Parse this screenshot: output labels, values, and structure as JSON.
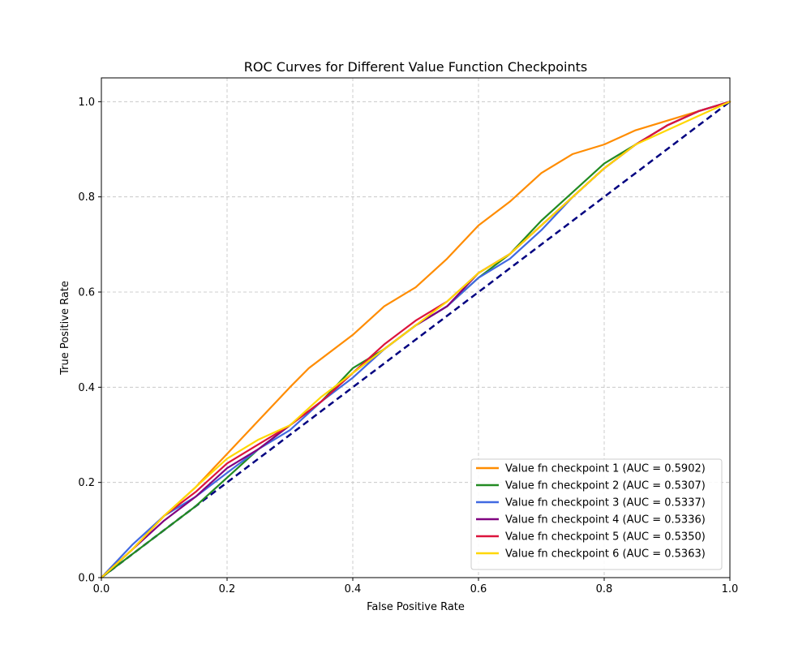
{
  "chart_data": {
    "type": "line",
    "title": "ROC Curves for Different Value Function Checkpoints",
    "xlabel": "False Positive Rate",
    "ylabel": "True Positive Rate",
    "xlim": [
      0.0,
      1.0
    ],
    "ylim": [
      0.0,
      1.05
    ],
    "x_ticks": [
      "0.0",
      "0.2",
      "0.4",
      "0.6",
      "0.8",
      "1.0"
    ],
    "y_ticks": [
      "0.0",
      "0.2",
      "0.4",
      "0.6",
      "0.8",
      "1.0"
    ],
    "grid": true,
    "grid_style": "dashed",
    "legend_position": "lower-right",
    "diagonal_reference": {
      "color": "#000080",
      "style": "dashed",
      "points": [
        [
          0,
          0
        ],
        [
          1,
          1
        ]
      ]
    },
    "series": [
      {
        "name": "Value fn checkpoint 1 (AUC = 0.5902)",
        "color": "#ff8c00",
        "points": [
          [
            0,
            0
          ],
          [
            0.05,
            0.06
          ],
          [
            0.1,
            0.13
          ],
          [
            0.15,
            0.19
          ],
          [
            0.2,
            0.26
          ],
          [
            0.25,
            0.33
          ],
          [
            0.3,
            0.4
          ],
          [
            0.33,
            0.44
          ],
          [
            0.4,
            0.51
          ],
          [
            0.45,
            0.57
          ],
          [
            0.5,
            0.61
          ],
          [
            0.55,
            0.67
          ],
          [
            0.6,
            0.74
          ],
          [
            0.65,
            0.79
          ],
          [
            0.7,
            0.85
          ],
          [
            0.75,
            0.89
          ],
          [
            0.8,
            0.91
          ],
          [
            0.85,
            0.94
          ],
          [
            0.9,
            0.96
          ],
          [
            0.95,
            0.98
          ],
          [
            1,
            1
          ]
        ]
      },
      {
        "name": "Value fn checkpoint 2 (AUC = 0.5307)",
        "color": "#228b22",
        "points": [
          [
            0,
            0
          ],
          [
            0.05,
            0.05
          ],
          [
            0.1,
            0.1
          ],
          [
            0.15,
            0.15
          ],
          [
            0.2,
            0.21
          ],
          [
            0.25,
            0.27
          ],
          [
            0.3,
            0.32
          ],
          [
            0.35,
            0.37
          ],
          [
            0.4,
            0.44
          ],
          [
            0.45,
            0.48
          ],
          [
            0.5,
            0.53
          ],
          [
            0.55,
            0.57
          ],
          [
            0.6,
            0.63
          ],
          [
            0.65,
            0.68
          ],
          [
            0.7,
            0.75
          ],
          [
            0.75,
            0.81
          ],
          [
            0.8,
            0.87
          ],
          [
            0.85,
            0.91
          ],
          [
            0.9,
            0.95
          ],
          [
            0.95,
            0.98
          ],
          [
            1,
            1
          ]
        ]
      },
      {
        "name": "Value fn checkpoint 3 (AUC = 0.5337)",
        "color": "#4169e1",
        "points": [
          [
            0,
            0
          ],
          [
            0.05,
            0.07
          ],
          [
            0.1,
            0.13
          ],
          [
            0.15,
            0.17
          ],
          [
            0.2,
            0.22
          ],
          [
            0.25,
            0.27
          ],
          [
            0.3,
            0.31
          ],
          [
            0.35,
            0.37
          ],
          [
            0.4,
            0.42
          ],
          [
            0.45,
            0.48
          ],
          [
            0.5,
            0.53
          ],
          [
            0.55,
            0.57
          ],
          [
            0.6,
            0.63
          ],
          [
            0.65,
            0.67
          ],
          [
            0.7,
            0.73
          ],
          [
            0.75,
            0.8
          ],
          [
            0.8,
            0.86
          ],
          [
            0.85,
            0.91
          ],
          [
            0.9,
            0.95
          ],
          [
            0.95,
            0.98
          ],
          [
            1,
            1
          ]
        ]
      },
      {
        "name": "Value fn checkpoint 4 (AUC = 0.5336)",
        "color": "#800080",
        "points": [
          [
            0,
            0
          ],
          [
            0.05,
            0.06
          ],
          [
            0.1,
            0.12
          ],
          [
            0.15,
            0.17
          ],
          [
            0.2,
            0.23
          ],
          [
            0.25,
            0.27
          ],
          [
            0.3,
            0.32
          ],
          [
            0.35,
            0.37
          ],
          [
            0.4,
            0.43
          ],
          [
            0.45,
            0.48
          ],
          [
            0.5,
            0.53
          ],
          [
            0.55,
            0.57
          ],
          [
            0.6,
            0.64
          ],
          [
            0.65,
            0.68
          ],
          [
            0.7,
            0.74
          ],
          [
            0.75,
            0.8
          ],
          [
            0.8,
            0.86
          ],
          [
            0.85,
            0.91
          ],
          [
            0.9,
            0.95
          ],
          [
            0.95,
            0.98
          ],
          [
            1,
            1
          ]
        ]
      },
      {
        "name": "Value fn checkpoint 5 (AUC = 0.5350)",
        "color": "#dc143c",
        "points": [
          [
            0,
            0
          ],
          [
            0.05,
            0.06
          ],
          [
            0.1,
            0.13
          ],
          [
            0.15,
            0.18
          ],
          [
            0.2,
            0.24
          ],
          [
            0.25,
            0.28
          ],
          [
            0.3,
            0.32
          ],
          [
            0.35,
            0.37
          ],
          [
            0.4,
            0.43
          ],
          [
            0.45,
            0.49
          ],
          [
            0.5,
            0.54
          ],
          [
            0.55,
            0.58
          ],
          [
            0.6,
            0.64
          ],
          [
            0.65,
            0.68
          ],
          [
            0.7,
            0.74
          ],
          [
            0.75,
            0.8
          ],
          [
            0.8,
            0.86
          ],
          [
            0.85,
            0.91
          ],
          [
            0.9,
            0.95
          ],
          [
            0.95,
            0.98
          ],
          [
            1,
            1
          ]
        ]
      },
      {
        "name": "Value fn checkpoint 6 (AUC = 0.5363)",
        "color": "#ffd700",
        "points": [
          [
            0,
            0
          ],
          [
            0.05,
            0.06
          ],
          [
            0.1,
            0.13
          ],
          [
            0.15,
            0.19
          ],
          [
            0.2,
            0.25
          ],
          [
            0.25,
            0.29
          ],
          [
            0.3,
            0.32
          ],
          [
            0.35,
            0.38
          ],
          [
            0.4,
            0.43
          ],
          [
            0.45,
            0.48
          ],
          [
            0.5,
            0.53
          ],
          [
            0.55,
            0.58
          ],
          [
            0.6,
            0.64
          ],
          [
            0.65,
            0.68
          ],
          [
            0.7,
            0.74
          ],
          [
            0.75,
            0.8
          ],
          [
            0.8,
            0.86
          ],
          [
            0.85,
            0.91
          ],
          [
            0.9,
            0.94
          ],
          [
            0.95,
            0.97
          ],
          [
            1,
            1
          ]
        ]
      }
    ]
  }
}
